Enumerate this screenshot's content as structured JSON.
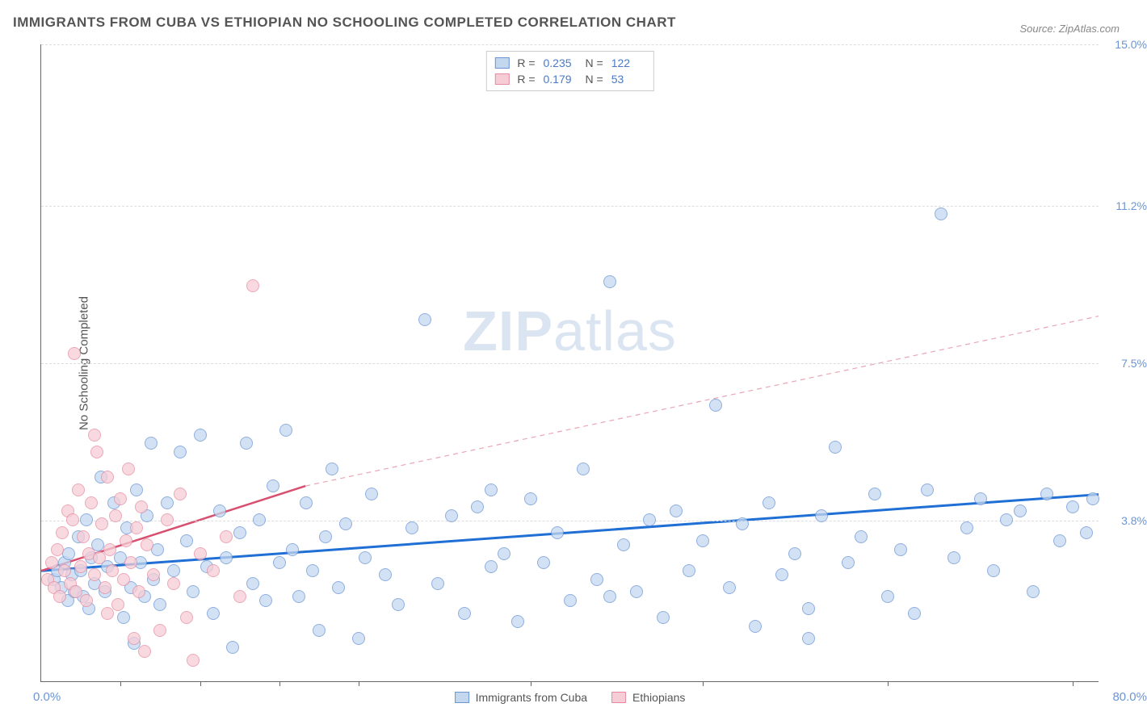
{
  "title": "IMMIGRANTS FROM CUBA VS ETHIOPIAN NO SCHOOLING COMPLETED CORRELATION CHART",
  "source": "Source: ZipAtlas.com",
  "y_axis_label": "No Schooling Completed",
  "watermark_a": "ZIP",
  "watermark_b": "atlas",
  "chart": {
    "type": "scatter",
    "xlim": [
      0,
      80
    ],
    "ylim": [
      0,
      15
    ],
    "x_min_label": "0.0%",
    "x_max_label": "80.0%",
    "y_ticks": [
      {
        "v": 3.8,
        "label": "3.8%"
      },
      {
        "v": 7.5,
        "label": "7.5%"
      },
      {
        "v": 11.2,
        "label": "11.2%"
      },
      {
        "v": 15.0,
        "label": "15.0%"
      }
    ],
    "x_tick_positions": [
      6,
      12,
      18,
      24,
      37,
      50,
      64,
      78
    ],
    "grid_color": "#dddddd",
    "axis_color": "#666666",
    "background_color": "#ffffff",
    "point_radius": 8,
    "series": [
      {
        "name": "Immigrants from Cuba",
        "fill": "#c3d7ef",
        "stroke": "#6b95d4",
        "opacity": 0.75,
        "r_value": "0.235",
        "n_value": "122",
        "trend": {
          "x1": 0,
          "y1": 2.6,
          "x2": 80,
          "y2": 4.4,
          "color": "#1f6fd4",
          "width": 3,
          "dash": "none"
        },
        "points": [
          [
            1,
            2.4
          ],
          [
            1.2,
            2.6
          ],
          [
            1.5,
            2.2
          ],
          [
            1.8,
            2.8
          ],
          [
            2,
            1.9
          ],
          [
            2.1,
            3.0
          ],
          [
            2.3,
            2.5
          ],
          [
            2.5,
            2.1
          ],
          [
            2.8,
            3.4
          ],
          [
            3.0,
            2.6
          ],
          [
            3.2,
            2.0
          ],
          [
            3.4,
            3.8
          ],
          [
            3.6,
            1.7
          ],
          [
            3.8,
            2.9
          ],
          [
            4.0,
            2.3
          ],
          [
            4.3,
            3.2
          ],
          [
            4.5,
            4.8
          ],
          [
            4.8,
            2.1
          ],
          [
            5.0,
            2.7
          ],
          [
            5.5,
            4.2
          ],
          [
            6.0,
            2.9
          ],
          [
            6.2,
            1.5
          ],
          [
            6.5,
            3.6
          ],
          [
            6.8,
            2.2
          ],
          [
            7.0,
            0.9
          ],
          [
            7.2,
            4.5
          ],
          [
            7.5,
            2.8
          ],
          [
            7.8,
            2.0
          ],
          [
            8.0,
            3.9
          ],
          [
            8.3,
            5.6
          ],
          [
            8.5,
            2.4
          ],
          [
            8.8,
            3.1
          ],
          [
            9.0,
            1.8
          ],
          [
            9.5,
            4.2
          ],
          [
            10.0,
            2.6
          ],
          [
            10.5,
            5.4
          ],
          [
            11.0,
            3.3
          ],
          [
            11.5,
            2.1
          ],
          [
            12.0,
            5.8
          ],
          [
            12.5,
            2.7
          ],
          [
            13.0,
            1.6
          ],
          [
            13.5,
            4.0
          ],
          [
            14.0,
            2.9
          ],
          [
            14.5,
            0.8
          ],
          [
            15.0,
            3.5
          ],
          [
            15.5,
            5.6
          ],
          [
            16.0,
            2.3
          ],
          [
            16.5,
            3.8
          ],
          [
            17.0,
            1.9
          ],
          [
            17.5,
            4.6
          ],
          [
            18.0,
            2.8
          ],
          [
            18.5,
            5.9
          ],
          [
            19.0,
            3.1
          ],
          [
            19.5,
            2.0
          ],
          [
            20.0,
            4.2
          ],
          [
            20.5,
            2.6
          ],
          [
            21.0,
            1.2
          ],
          [
            21.5,
            3.4
          ],
          [
            22.0,
            5.0
          ],
          [
            22.5,
            2.2
          ],
          [
            23.0,
            3.7
          ],
          [
            24.0,
            1.0
          ],
          [
            24.5,
            2.9
          ],
          [
            25.0,
            4.4
          ],
          [
            26.0,
            2.5
          ],
          [
            27.0,
            1.8
          ],
          [
            28.0,
            3.6
          ],
          [
            29.0,
            8.5
          ],
          [
            30.0,
            2.3
          ],
          [
            31.0,
            3.9
          ],
          [
            32.0,
            1.6
          ],
          [
            33.0,
            4.1
          ],
          [
            34.0,
            2.7
          ],
          [
            35.0,
            3.0
          ],
          [
            36.0,
            1.4
          ],
          [
            37.0,
            4.3
          ],
          [
            38.0,
            2.8
          ],
          [
            39.0,
            3.5
          ],
          [
            40.0,
            1.9
          ],
          [
            41.0,
            5.0
          ],
          [
            42.0,
            2.4
          ],
          [
            43.0,
            9.4
          ],
          [
            44.0,
            3.2
          ],
          [
            45.0,
            2.1
          ],
          [
            46.0,
            3.8
          ],
          [
            47.0,
            1.5
          ],
          [
            48.0,
            4.0
          ],
          [
            49.0,
            2.6
          ],
          [
            50.0,
            3.3
          ],
          [
            51.0,
            6.5
          ],
          [
            52.0,
            2.2
          ],
          [
            53.0,
            3.7
          ],
          [
            54.0,
            1.3
          ],
          [
            55.0,
            4.2
          ],
          [
            56.0,
            2.5
          ],
          [
            57.0,
            3.0
          ],
          [
            58.0,
            1.7
          ],
          [
            59.0,
            3.9
          ],
          [
            60.0,
            5.5
          ],
          [
            61.0,
            2.8
          ],
          [
            62.0,
            3.4
          ],
          [
            63.0,
            4.4
          ],
          [
            64.0,
            2.0
          ],
          [
            65.0,
            3.1
          ],
          [
            66.0,
            1.6
          ],
          [
            67.0,
            4.5
          ],
          [
            68.0,
            11.0
          ],
          [
            69.0,
            2.9
          ],
          [
            70.0,
            3.6
          ],
          [
            71.0,
            4.3
          ],
          [
            72.0,
            2.6
          ],
          [
            73.0,
            3.8
          ],
          [
            74.0,
            4.0
          ],
          [
            75.0,
            2.1
          ],
          [
            76.0,
            4.4
          ],
          [
            77.0,
            3.3
          ],
          [
            78.0,
            4.1
          ],
          [
            79.0,
            3.5
          ],
          [
            79.5,
            4.3
          ],
          [
            58.0,
            1.0
          ],
          [
            43.0,
            2.0
          ],
          [
            34.0,
            4.5
          ]
        ]
      },
      {
        "name": "Ethiopians",
        "fill": "#f6cdd6",
        "stroke": "#e58ca0",
        "opacity": 0.75,
        "r_value": "0.179",
        "n_value": "53",
        "trend": {
          "x1": 0,
          "y1": 2.6,
          "x2": 20,
          "y2": 4.6,
          "color": "#d94f70",
          "width": 2.5,
          "dash": "none"
        },
        "trend_ext": {
          "x1": 20,
          "y1": 4.6,
          "x2": 80,
          "y2": 8.6,
          "color": "#e9a6b5",
          "width": 1.2,
          "dash": "6,5"
        },
        "points": [
          [
            0.5,
            2.4
          ],
          [
            0.8,
            2.8
          ],
          [
            1.0,
            2.2
          ],
          [
            1.2,
            3.1
          ],
          [
            1.4,
            2.0
          ],
          [
            1.6,
            3.5
          ],
          [
            1.8,
            2.6
          ],
          [
            2.0,
            4.0
          ],
          [
            2.2,
            2.3
          ],
          [
            2.4,
            3.8
          ],
          [
            2.6,
            2.1
          ],
          [
            2.8,
            4.5
          ],
          [
            3.0,
            2.7
          ],
          [
            3.2,
            3.4
          ],
          [
            3.4,
            1.9
          ],
          [
            3.6,
            3.0
          ],
          [
            3.8,
            4.2
          ],
          [
            4.0,
            2.5
          ],
          [
            4.2,
            5.4
          ],
          [
            4.4,
            2.9
          ],
          [
            4.6,
            3.7
          ],
          [
            4.8,
            2.2
          ],
          [
            5.0,
            4.8
          ],
          [
            5.2,
            3.1
          ],
          [
            5.4,
            2.6
          ],
          [
            5.6,
            3.9
          ],
          [
            5.8,
            1.8
          ],
          [
            6.0,
            4.3
          ],
          [
            6.2,
            2.4
          ],
          [
            6.4,
            3.3
          ],
          [
            6.6,
            5.0
          ],
          [
            6.8,
            2.8
          ],
          [
            7.0,
            1.0
          ],
          [
            7.2,
            3.6
          ],
          [
            7.4,
            2.1
          ],
          [
            7.6,
            4.1
          ],
          [
            7.8,
            0.7
          ],
          [
            8.0,
            3.2
          ],
          [
            8.5,
            2.5
          ],
          [
            9.0,
            1.2
          ],
          [
            9.5,
            3.8
          ],
          [
            10.0,
            2.3
          ],
          [
            10.5,
            4.4
          ],
          [
            11.0,
            1.5
          ],
          [
            11.5,
            0.5
          ],
          [
            12.0,
            3.0
          ],
          [
            13.0,
            2.6
          ],
          [
            14.0,
            3.4
          ],
          [
            15.0,
            2.0
          ],
          [
            2.5,
            7.7
          ],
          [
            16.0,
            9.3
          ],
          [
            5.0,
            1.6
          ],
          [
            4.0,
            5.8
          ]
        ]
      }
    ]
  },
  "legend_top": {
    "r_label": "R =",
    "n_label": "N ="
  },
  "legend_bottom": {
    "items": [
      "Immigrants from Cuba",
      "Ethiopians"
    ]
  }
}
